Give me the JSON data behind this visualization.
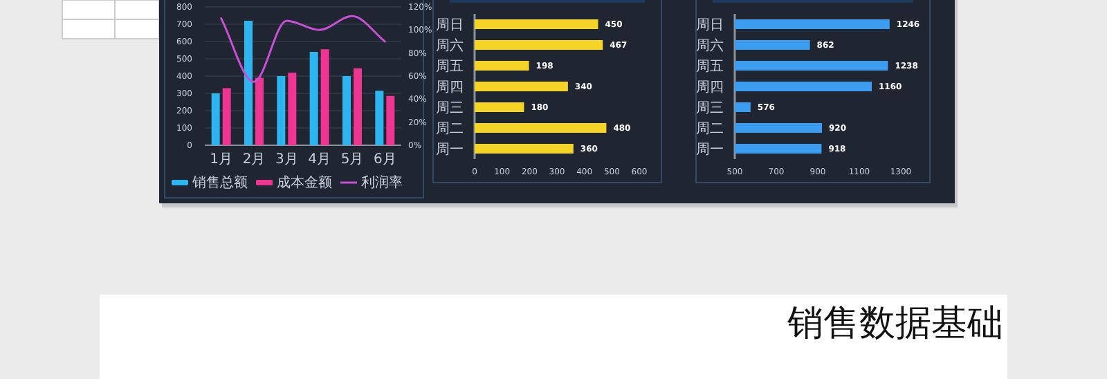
{
  "chart_data": [
    {
      "type": "bar",
      "categories": [
        "1月",
        "2月",
        "3月",
        "4月",
        "5月",
        "6月"
      ],
      "series": [
        {
          "name": "销售总额",
          "color": "#2fb4f2",
          "values": [
            300,
            720,
            400,
            540,
            400,
            315
          ]
        },
        {
          "name": "成本金额",
          "color": "#ef3592",
          "values": [
            330,
            390,
            420,
            555,
            445,
            285
          ]
        },
        {
          "name": "利润率",
          "type": "line",
          "axis": "y2",
          "color": "#c94fd6",
          "values": [
            110,
            55,
            108,
            100,
            112,
            90
          ]
        }
      ],
      "ylim": [
        0,
        800
      ],
      "yticks": [
        0,
        100,
        200,
        300,
        400,
        500,
        600,
        700,
        800
      ],
      "y2lim": [
        0,
        120
      ],
      "y2ticks": [
        {
          "value": 0,
          "label": "0%"
        },
        {
          "value": 20,
          "label": "20%"
        },
        {
          "value": 40,
          "label": "40%"
        },
        {
          "value": 60,
          "label": "60%"
        },
        {
          "value": 80,
          "label": "80%"
        },
        {
          "value": 100,
          "label": "100%"
        },
        {
          "value": 120,
          "label": "120%"
        }
      ],
      "grid": "y",
      "legend": "bottom"
    },
    {
      "type": "bar",
      "orientation": "horizontal",
      "categories": [
        "周日",
        "周六",
        "周五",
        "周四",
        "周三",
        "周二",
        "周一"
      ],
      "values": [
        450,
        467,
        198,
        340,
        180,
        480,
        360
      ],
      "color": "#f5d327",
      "xlim": [
        0,
        600
      ],
      "xticks": [
        0,
        100,
        200,
        300,
        400,
        500,
        600
      ],
      "data_labels": true
    },
    {
      "type": "bar",
      "orientation": "horizontal",
      "categories": [
        "周日",
        "周六",
        "周五",
        "周四",
        "周三",
        "周二",
        "周一"
      ],
      "values": [
        1246,
        862,
        1238,
        1160,
        576,
        920,
        918
      ],
      "color": "#3b9cf0",
      "xlim": [
        500,
        1300
      ],
      "xticks": [
        500,
        700,
        900,
        1100,
        1300
      ],
      "data_labels": true
    },
    {
      "type": "other",
      "title": "销售数据基础"
    }
  ]
}
